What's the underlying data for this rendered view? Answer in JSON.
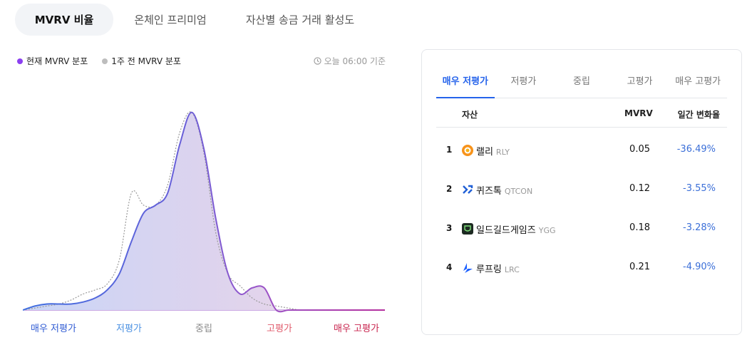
{
  "tabs": [
    "MVRV 비율",
    "온체인 프리미엄",
    "자산별 송금 거래 활성도"
  ],
  "legend": {
    "current": "현재 MVRV 분포",
    "week_ago": "1주 전 MVRV 분포",
    "current_color": "#8b3ff0",
    "week_ago_color": "#bdbdbd"
  },
  "timestamp": "오늘 06:00 기준",
  "zones": [
    {
      "label": "매우 저평가",
      "color": "#2f5bd3"
    },
    {
      "label": "저평가",
      "color": "#4a90e2"
    },
    {
      "label": "중립",
      "color": "#8a8a8a"
    },
    {
      "label": "고평가",
      "color": "#e05a6b"
    },
    {
      "label": "매우 고평가",
      "color": "#c8234d"
    }
  ],
  "panel": {
    "tabs": [
      "매우 저평가",
      "저평가",
      "중립",
      "고평가",
      "매우 고평가"
    ],
    "headers": {
      "asset": "자산",
      "mvrv": "MVRV",
      "change": "일간 변화율"
    },
    "rows": [
      {
        "rank": "1",
        "name": "랠리",
        "ticker": "RLY",
        "mvrv": "0.05",
        "change": "-36.49%",
        "icon": "rally-coin-icon"
      },
      {
        "rank": "2",
        "name": "퀴즈톡",
        "ticker": "QTCON",
        "mvrv": "0.12",
        "change": "-3.55%",
        "icon": "quiztok-coin-icon"
      },
      {
        "rank": "3",
        "name": "일드길드게임즈",
        "ticker": "YGG",
        "mvrv": "0.18",
        "change": "-3.28%",
        "icon": "ygg-coin-icon"
      },
      {
        "rank": "4",
        "name": "루프링",
        "ticker": "LRC",
        "mvrv": "0.21",
        "change": "-4.90%",
        "icon": "loopring-coin-icon"
      }
    ]
  },
  "chart_data": {
    "type": "area",
    "series": [
      {
        "name": "현재 MVRV 분포",
        "values": [
          0.0,
          0.02,
          0.03,
          0.03,
          0.03,
          0.04,
          0.06,
          0.1,
          0.18,
          0.34,
          0.48,
          0.52,
          0.58,
          0.82,
          0.98,
          0.8,
          0.45,
          0.18,
          0.08,
          0.11,
          0.11,
          0.0,
          0.0,
          0.0,
          0.0,
          0.0,
          0.0,
          0.0,
          0.0,
          0.0,
          0.0
        ]
      },
      {
        "name": "1주 전 MVRV 분포",
        "values": [
          0.0,
          0.01,
          0.02,
          0.03,
          0.05,
          0.08,
          0.1,
          0.13,
          0.25,
          0.58,
          0.52,
          0.52,
          0.62,
          0.88,
          0.98,
          0.78,
          0.38,
          0.18,
          0.12,
          0.06,
          0.03,
          0.02,
          0.01,
          0.0,
          0.0,
          0.0,
          0.0,
          0.0,
          0.0,
          0.0,
          0.0
        ]
      }
    ]
  }
}
